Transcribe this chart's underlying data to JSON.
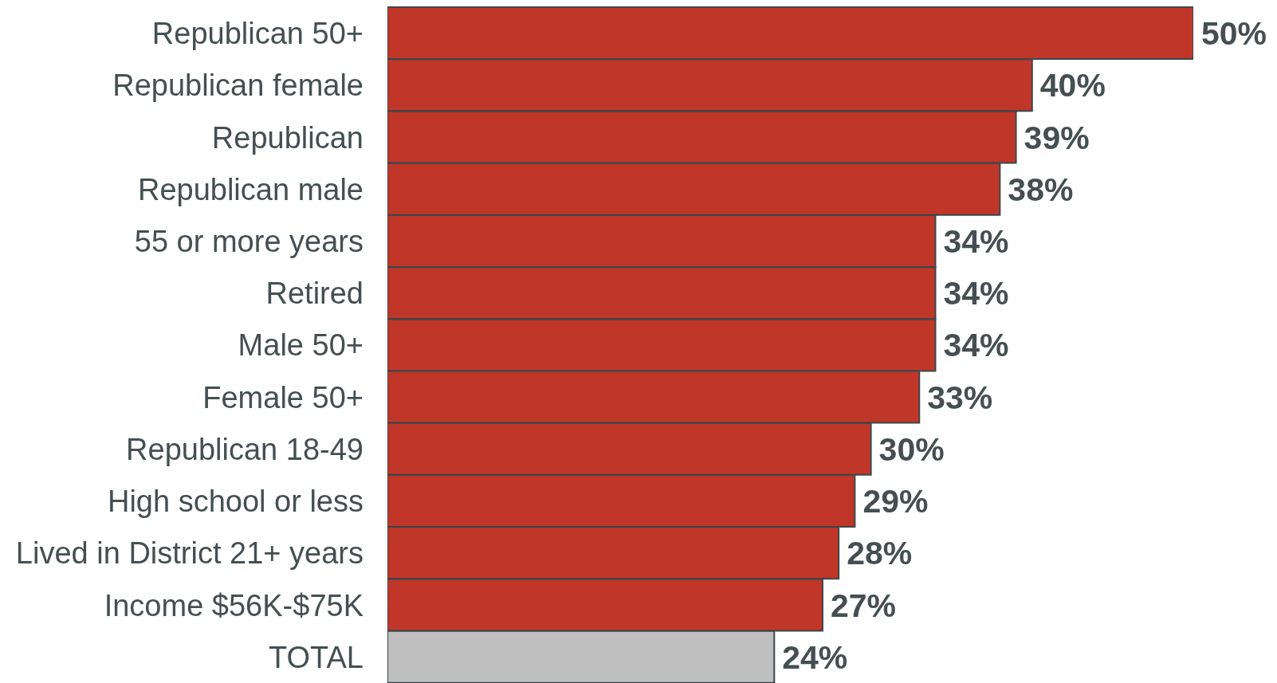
{
  "chart_data": {
    "type": "bar",
    "orientation": "horizontal",
    "categories": [
      "Republican 50+",
      "Republican female",
      "Republican",
      "Republican male",
      "55 or more years",
      "Retired",
      "Male 50+",
      "Female 50+",
      "Republican 18-49",
      "High school or less",
      "Lived in District 21+ years",
      "Income $56K-$75K",
      "TOTAL"
    ],
    "values": [
      50,
      40,
      39,
      38,
      34,
      34,
      34,
      33,
      30,
      29,
      28,
      27,
      24
    ],
    "colors": [
      "#c0372a",
      "#c0372a",
      "#c0372a",
      "#c0372a",
      "#c0372a",
      "#c0372a",
      "#c0372a",
      "#c0372a",
      "#c0372a",
      "#c0372a",
      "#c0372a",
      "#c0372a",
      "#bfbfbf"
    ],
    "value_labels": [
      "50%",
      "40%",
      "39%",
      "38%",
      "34%",
      "34%",
      "34%",
      "33%",
      "30%",
      "29%",
      "28%",
      "27%",
      "24%"
    ],
    "tick_labels": "y"
  }
}
